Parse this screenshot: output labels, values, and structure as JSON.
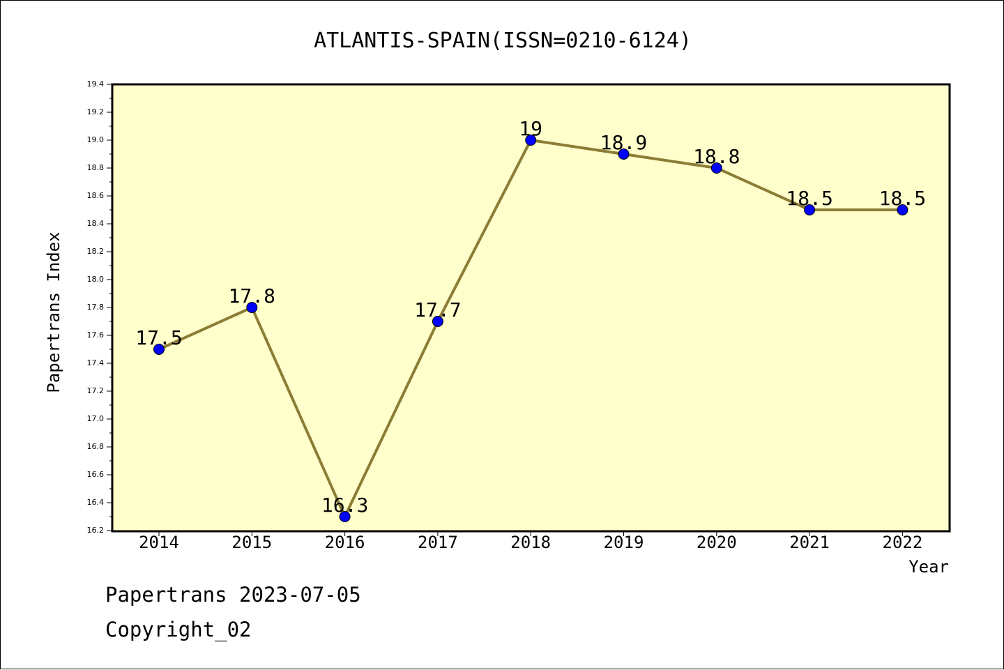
{
  "chart_data": {
    "type": "line",
    "title": "ATLANTIS-SPAIN(ISSN=0210-6124)",
    "xlabel": "Year",
    "ylabel": "Papertrans Index",
    "categories": [
      "2014",
      "2015",
      "2016",
      "2017",
      "2018",
      "2019",
      "2020",
      "2021",
      "2022"
    ],
    "series": [
      {
        "values": [
          17.5,
          17.8,
          16.3,
          17.7,
          19.0,
          18.9,
          18.8,
          18.5,
          18.5
        ],
        "data_labels": [
          "17.5",
          "17.8",
          "16.3",
          "17.7",
          "19",
          "18.9",
          "18.8",
          "18.5",
          "18.5"
        ],
        "line_color": "#8b7d35",
        "marker_color": "#0000ff"
      }
    ],
    "ylim": [
      16.2,
      19.4
    ],
    "yticks": [
      "16.2",
      "16.4",
      "16.6",
      "16.8",
      "17.0",
      "17.2",
      "17.4",
      "17.6",
      "17.8",
      "18.0",
      "18.2",
      "18.4",
      "18.6",
      "18.8",
      "19.0",
      "19.2",
      "19.4"
    ],
    "grid": false,
    "legend": "none",
    "plot_background": "#ffffcc"
  },
  "footer": {
    "line1": "Papertrans 2023-07-05",
    "line2": "Copyright_02"
  }
}
